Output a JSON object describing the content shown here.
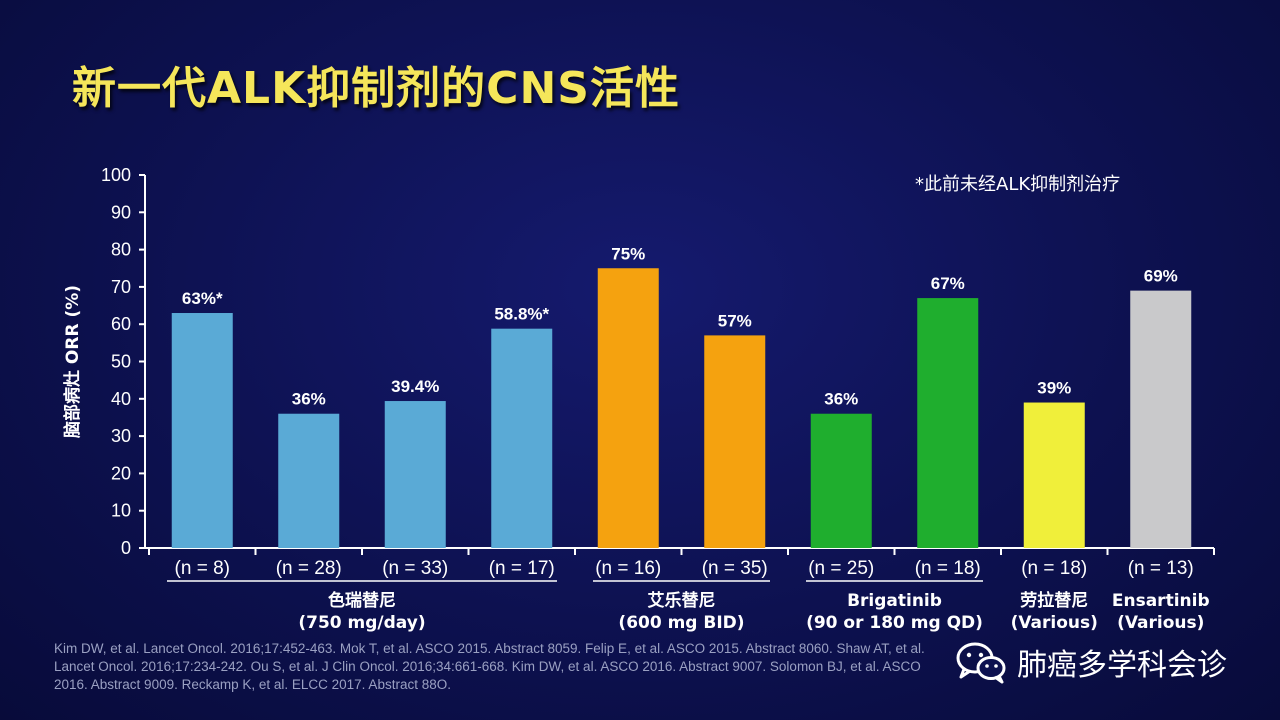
{
  "title": "新一代ALK抑制剂的CNS活性",
  "footnote": "*此前未经ALK抑制剂治疗",
  "chart_data": {
    "type": "bar",
    "ylabel": "脑部病灶 ORR (%)",
    "ylim": [
      0,
      100
    ],
    "yticks": [
      0,
      10,
      20,
      30,
      40,
      50,
      60,
      70,
      80,
      90,
      100
    ],
    "bars": [
      {
        "n": "(n = 8)",
        "value": 63,
        "label": "63%*",
        "color": "#5aaad6"
      },
      {
        "n": "(n = 28)",
        "value": 36,
        "label": "36%",
        "color": "#5aaad6"
      },
      {
        "n": "(n = 33)",
        "value": 39.4,
        "label": "39.4%",
        "color": "#5aaad6"
      },
      {
        "n": "(n = 17)",
        "value": 58.8,
        "label": "58.8%*",
        "color": "#5aaad6"
      },
      {
        "n": "(n = 16)",
        "value": 75,
        "label": "75%",
        "color": "#f5a20f"
      },
      {
        "n": "(n = 35)",
        "value": 57,
        "label": "57%",
        "color": "#f5a20f"
      },
      {
        "n": "(n = 25)",
        "value": 36,
        "label": "36%",
        "color": "#1fae2e"
      },
      {
        "n": "(n = 18)",
        "value": 67,
        "label": "67%",
        "color": "#1fae2e"
      },
      {
        "n": "(n = 18)",
        "value": 39,
        "label": "39%",
        "color": "#f0ef3a"
      },
      {
        "n": "(n = 13)",
        "value": 69,
        "label": "69%",
        "color": "#c9c9cb"
      }
    ],
    "groups": [
      {
        "lines": [
          "色瑞替尼",
          "(750 mg/day)"
        ],
        "bars": [
          0,
          3
        ]
      },
      {
        "lines": [
          "艾乐替尼",
          "(600 mg BID)"
        ],
        "bars": [
          4,
          5
        ]
      },
      {
        "lines": [
          "Brigatinib",
          "(90 or 180 mg QD)"
        ],
        "bars": [
          6,
          7
        ]
      },
      {
        "lines": [
          "劳拉替尼",
          "(Various)"
        ],
        "bars": [
          8,
          8
        ]
      },
      {
        "lines": [
          "Ensartinib",
          "(Various)"
        ],
        "bars": [
          9,
          9
        ]
      }
    ]
  },
  "references": "Kim DW, et al. Lancet Oncol. 2016;17:452-463. Mok T, et al. ASCO 2015. Abstract 8059. Felip E, et al. ASCO 2015. Abstract 8060. Shaw AT, et al. Lancet Oncol. 2016;17:234-242. Ou S, et al. J Clin Oncol. 2016;34:661-668. Kim DW, et al. ASCO 2016. Abstract 9007. Solomon BJ, et al. ASCO 2016. Abstract 9009. Reckamp K, et al. ELCC 2017. Abstract 88O.",
  "watermark": {
    "text": "肺癌多学科会诊",
    "icon": "wechat-icon"
  }
}
